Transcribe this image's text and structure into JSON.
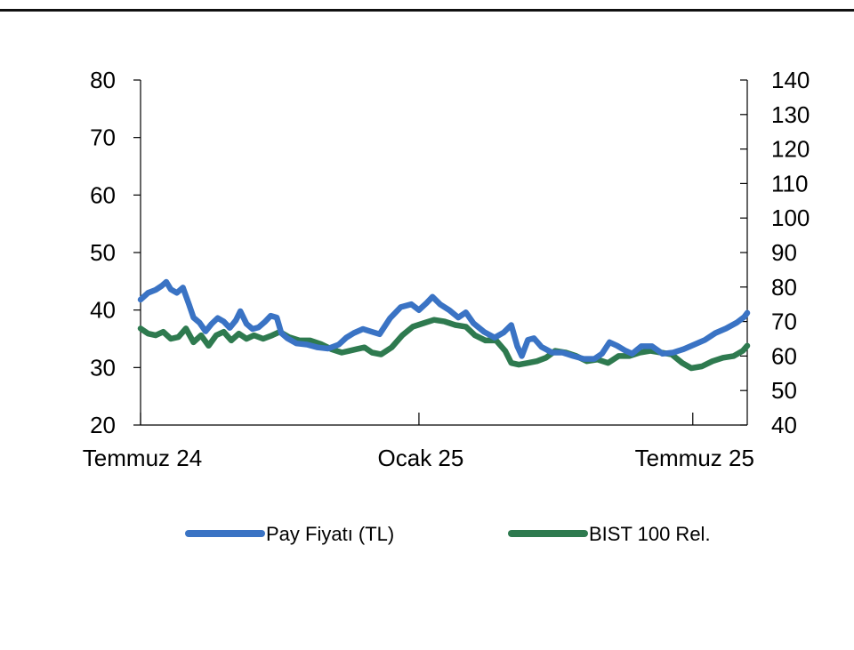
{
  "chart_data": {
    "type": "line",
    "title": "",
    "x_ticks": [
      "Temmuz 24",
      "Ocak 25",
      "Temmuz 25"
    ],
    "y_left": {
      "min": 20,
      "max": 80,
      "ticks": [
        20,
        30,
        40,
        50,
        60,
        70,
        80
      ]
    },
    "y_right": {
      "min": 40,
      "max": 140,
      "ticks": [
        40,
        50,
        60,
        70,
        80,
        90,
        100,
        110,
        120,
        130,
        140
      ]
    },
    "legend_position": "bottom",
    "grid": false,
    "x_start": "2024-07-01",
    "x_end": "2025-08-06",
    "series": [
      {
        "name": "Pay Fiyatı (TL)",
        "axis": "left",
        "color": "#3a73c4",
        "points": [
          [
            "2024-07-01",
            41.8
          ],
          [
            "2024-07-06",
            43.0
          ],
          [
            "2024-07-11",
            43.5
          ],
          [
            "2024-07-15",
            44.2
          ],
          [
            "2024-07-18",
            44.9
          ],
          [
            "2024-07-21",
            43.6
          ],
          [
            "2024-07-25",
            43.0
          ],
          [
            "2024-07-29",
            43.9
          ],
          [
            "2024-08-02",
            41.0
          ],
          [
            "2024-08-05",
            38.7
          ],
          [
            "2024-08-09",
            37.8
          ],
          [
            "2024-08-13",
            36.3
          ],
          [
            "2024-08-17",
            37.6
          ],
          [
            "2024-08-21",
            38.6
          ],
          [
            "2024-08-25",
            38.0
          ],
          [
            "2024-08-29",
            36.9
          ],
          [
            "2024-09-02",
            38.2
          ],
          [
            "2024-09-05",
            39.8
          ],
          [
            "2024-09-09",
            37.6
          ],
          [
            "2024-09-13",
            36.7
          ],
          [
            "2024-09-17",
            37.0
          ],
          [
            "2024-09-21",
            37.9
          ],
          [
            "2024-09-25",
            39.0
          ],
          [
            "2024-09-29",
            38.7
          ],
          [
            "2024-10-02",
            36.0
          ],
          [
            "2024-10-06",
            35.1
          ],
          [
            "2024-10-12",
            34.2
          ],
          [
            "2024-10-19",
            34.0
          ],
          [
            "2024-10-26",
            33.5
          ],
          [
            "2024-11-02",
            33.3
          ],
          [
            "2024-11-09",
            34.0
          ],
          [
            "2024-11-14",
            35.2
          ],
          [
            "2024-11-19",
            36.0
          ],
          [
            "2024-11-25",
            36.7
          ],
          [
            "2024-12-01",
            36.2
          ],
          [
            "2024-12-06",
            35.8
          ],
          [
            "2024-12-13",
            38.6
          ],
          [
            "2024-12-20",
            40.5
          ],
          [
            "2024-12-27",
            41.0
          ],
          [
            "2025-01-01",
            40.0
          ],
          [
            "2025-01-06",
            41.2
          ],
          [
            "2025-01-10",
            42.3
          ],
          [
            "2025-01-15",
            41.0
          ],
          [
            "2025-01-21",
            40.0
          ],
          [
            "2025-01-27",
            38.7
          ],
          [
            "2025-02-01",
            39.6
          ],
          [
            "2025-02-06",
            37.7
          ],
          [
            "2025-02-13",
            36.2
          ],
          [
            "2025-02-20",
            35.2
          ],
          [
            "2025-02-26",
            36.1
          ],
          [
            "2025-03-03",
            37.4
          ],
          [
            "2025-03-07",
            33.7
          ],
          [
            "2025-03-10",
            32.0
          ],
          [
            "2025-03-14",
            34.8
          ],
          [
            "2025-03-18",
            35.1
          ],
          [
            "2025-03-23",
            33.6
          ],
          [
            "2025-03-30",
            32.6
          ],
          [
            "2025-04-06",
            32.6
          ],
          [
            "2025-04-13",
            32.0
          ],
          [
            "2025-04-20",
            31.5
          ],
          [
            "2025-04-27",
            31.5
          ],
          [
            "2025-05-02",
            32.4
          ],
          [
            "2025-05-07",
            34.4
          ],
          [
            "2025-05-12",
            33.8
          ],
          [
            "2025-05-17",
            33.0
          ],
          [
            "2025-05-22",
            32.4
          ],
          [
            "2025-05-28",
            33.7
          ],
          [
            "2025-06-04",
            33.7
          ],
          [
            "2025-06-11",
            32.4
          ],
          [
            "2025-06-18",
            32.6
          ],
          [
            "2025-06-25",
            33.2
          ],
          [
            "2025-07-02",
            34.0
          ],
          [
            "2025-07-09",
            34.8
          ],
          [
            "2025-07-16",
            36.0
          ],
          [
            "2025-07-23",
            36.8
          ],
          [
            "2025-07-30",
            37.8
          ],
          [
            "2025-08-04",
            38.8
          ],
          [
            "2025-08-06",
            39.5
          ]
        ]
      },
      {
        "name": "BIST 100 Rel.",
        "axis": "right",
        "color": "#2e7a4f",
        "points": [
          [
            "2024-07-01",
            68.0
          ],
          [
            "2024-07-06",
            66.5
          ],
          [
            "2024-07-11",
            66.0
          ],
          [
            "2024-07-16",
            67.0
          ],
          [
            "2024-07-21",
            65.0
          ],
          [
            "2024-07-26",
            65.5
          ],
          [
            "2024-07-31",
            68.0
          ],
          [
            "2024-08-05",
            64.0
          ],
          [
            "2024-08-10",
            66.0
          ],
          [
            "2024-08-15",
            63.0
          ],
          [
            "2024-08-20",
            66.0
          ],
          [
            "2024-08-25",
            67.0
          ],
          [
            "2024-08-30",
            64.5
          ],
          [
            "2024-09-04",
            66.5
          ],
          [
            "2024-09-09",
            65.0
          ],
          [
            "2024-09-14",
            66.0
          ],
          [
            "2024-09-20",
            65.0
          ],
          [
            "2024-09-26",
            66.0
          ],
          [
            "2024-10-01",
            67.0
          ],
          [
            "2024-10-07",
            65.5
          ],
          [
            "2024-10-14",
            64.5
          ],
          [
            "2024-10-21",
            64.5
          ],
          [
            "2024-10-28",
            63.5
          ],
          [
            "2024-11-04",
            62.0
          ],
          [
            "2024-11-11",
            61.0
          ],
          [
            "2024-11-16",
            61.5
          ],
          [
            "2024-11-21",
            62.0
          ],
          [
            "2024-11-26",
            62.5
          ],
          [
            "2024-12-01",
            61.0
          ],
          [
            "2024-12-07",
            60.5
          ],
          [
            "2024-12-14",
            62.5
          ],
          [
            "2024-12-21",
            66.0
          ],
          [
            "2024-12-28",
            68.5
          ],
          [
            "2025-01-04",
            69.5
          ],
          [
            "2025-01-11",
            70.5
          ],
          [
            "2025-01-18",
            70.0
          ],
          [
            "2025-01-25",
            69.0
          ],
          [
            "2025-02-01",
            68.5
          ],
          [
            "2025-02-07",
            66.0
          ],
          [
            "2025-02-14",
            64.5
          ],
          [
            "2025-02-21",
            64.5
          ],
          [
            "2025-02-27",
            61.5
          ],
          [
            "2025-03-03",
            58.0
          ],
          [
            "2025-03-08",
            57.5
          ],
          [
            "2025-03-14",
            58.0
          ],
          [
            "2025-03-20",
            58.5
          ],
          [
            "2025-03-26",
            59.5
          ],
          [
            "2025-04-01",
            61.5
          ],
          [
            "2025-04-08",
            61.0
          ],
          [
            "2025-04-15",
            60.0
          ],
          [
            "2025-04-22",
            58.5
          ],
          [
            "2025-04-29",
            59.0
          ],
          [
            "2025-05-06",
            58.0
          ],
          [
            "2025-05-13",
            60.0
          ],
          [
            "2025-05-20",
            60.0
          ],
          [
            "2025-05-27",
            61.0
          ],
          [
            "2025-06-03",
            61.5
          ],
          [
            "2025-06-10",
            61.0
          ],
          [
            "2025-06-17",
            60.5
          ],
          [
            "2025-06-24",
            58.0
          ],
          [
            "2025-06-30",
            56.5
          ],
          [
            "2025-07-07",
            57.0
          ],
          [
            "2025-07-14",
            58.5
          ],
          [
            "2025-07-21",
            59.5
          ],
          [
            "2025-07-28",
            60.0
          ],
          [
            "2025-08-03",
            61.5
          ],
          [
            "2025-08-06",
            63.0
          ]
        ]
      }
    ]
  }
}
